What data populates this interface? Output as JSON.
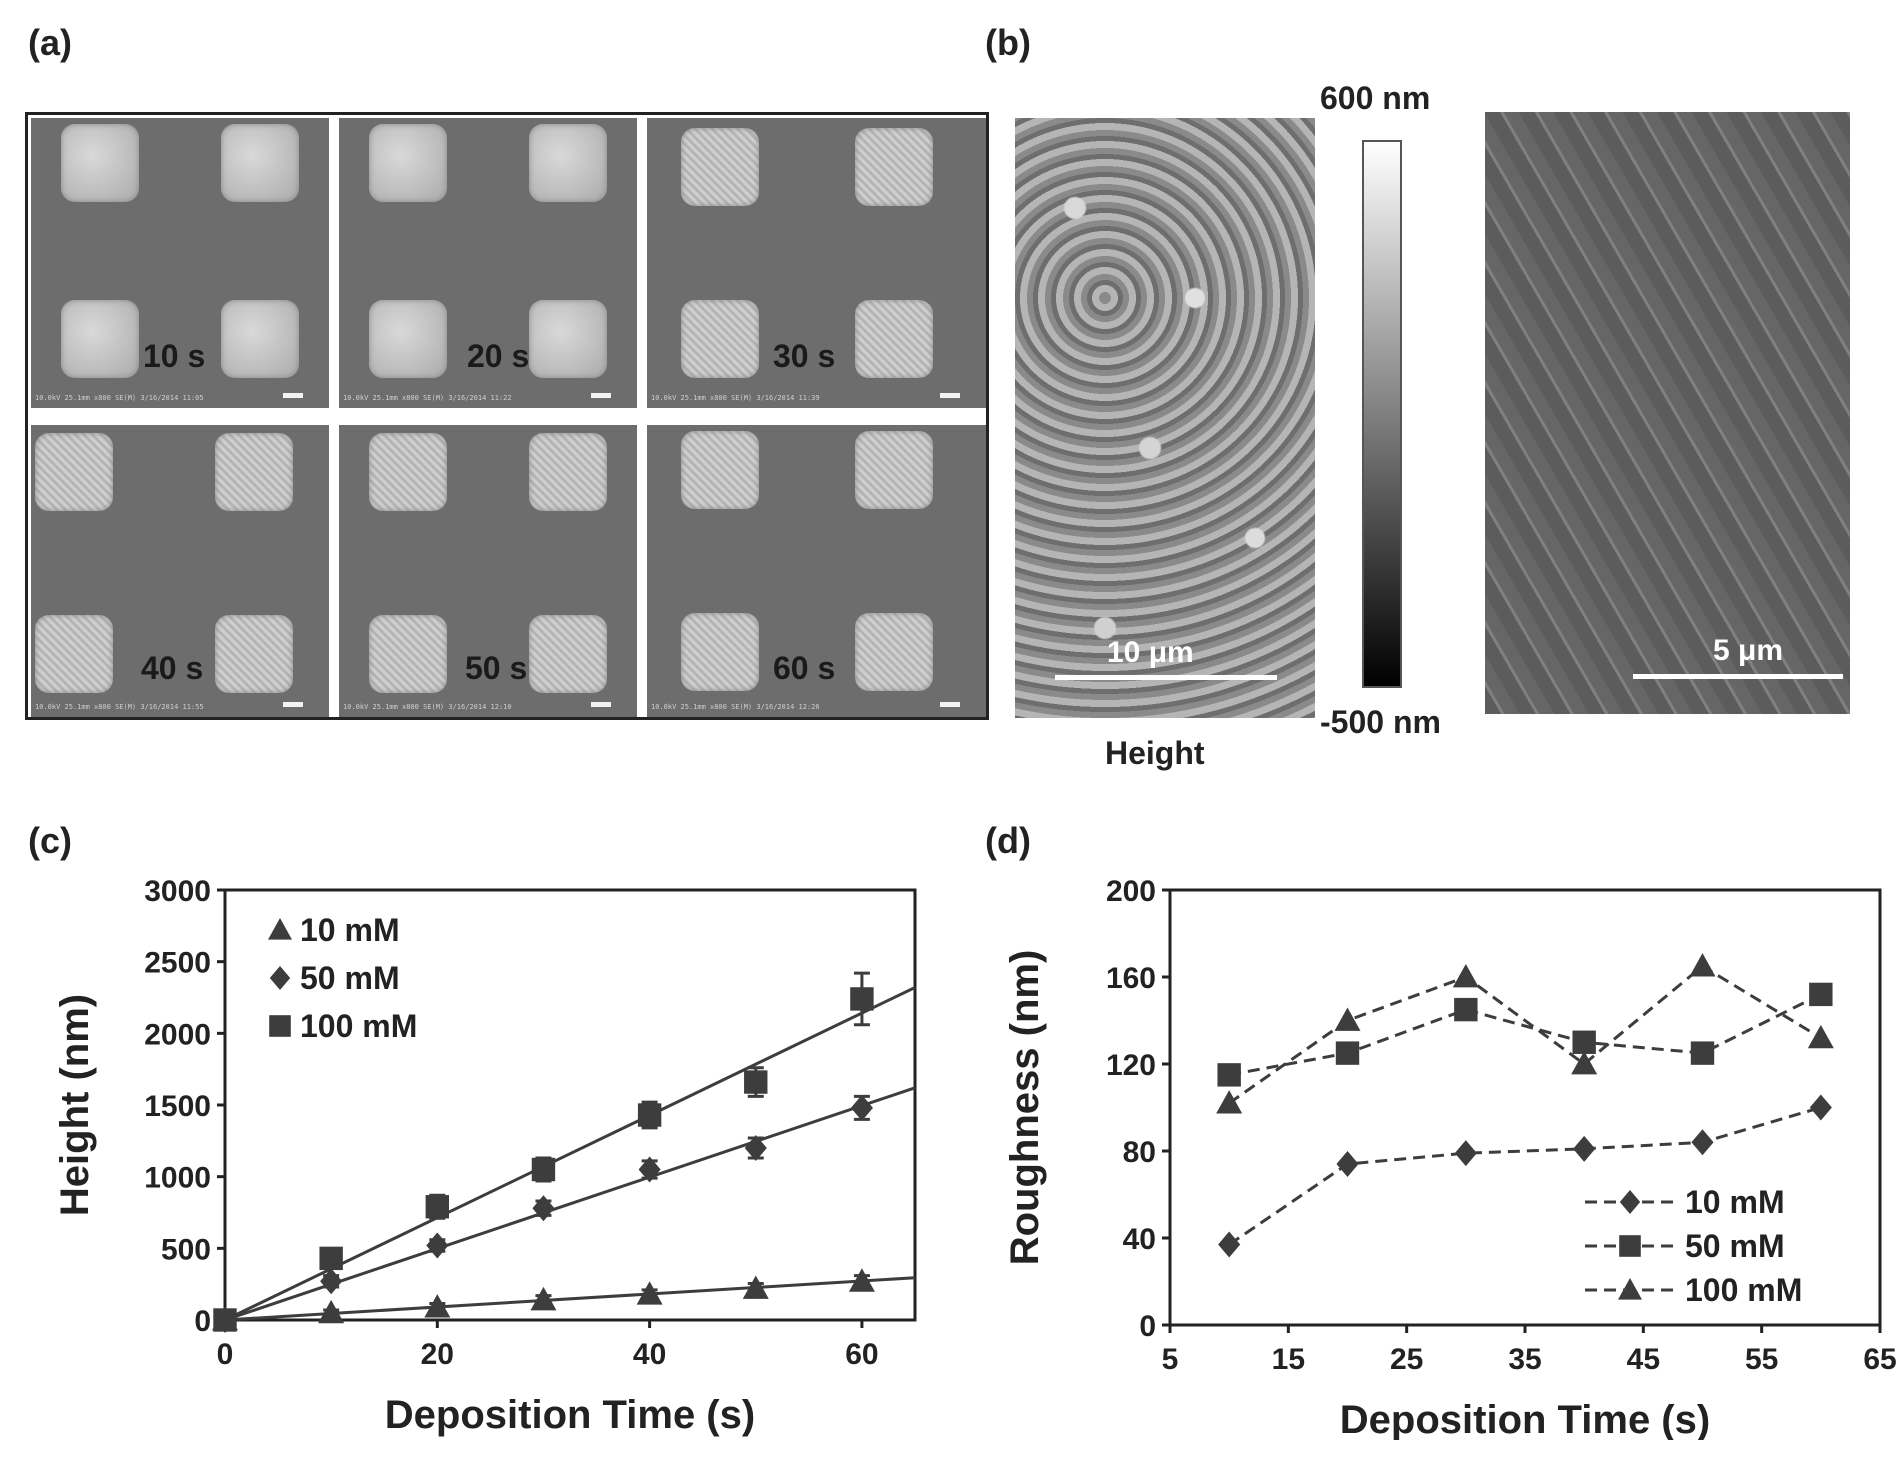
{
  "panels": {
    "a": {
      "label": "(a)",
      "tiles": [
        "10 s",
        "20 s",
        "30 s",
        "40 s",
        "50 s",
        "60 s"
      ],
      "info_text": [
        "10.0kV 25.1mm x800 SE(M) 3/16/2014 11:05",
        "10.0kV 25.1mm x800 SE(M) 3/16/2014 11:22",
        "10.0kV 25.1mm x800 SE(M) 3/16/2014 11:39",
        "10.0kV 25.1mm x800 SE(M) 3/16/2014 11:55",
        "10.0kV 25.1mm x800 SE(M) 3/16/2014 12:10",
        "10.0kV 25.1mm x800 SE(M) 3/16/2014 12:26"
      ]
    },
    "b": {
      "label": "(b)",
      "afm_scale": "10 μm",
      "sem_scale": "5 μm",
      "colorbar_max": "600 nm",
      "colorbar_min": "-500 nm",
      "colorbar_title": "Height"
    },
    "c": {
      "label": "(c)"
    },
    "d": {
      "label": "(d)"
    }
  },
  "colors": {
    "series": "#3d3d3d",
    "axis": "#222222"
  },
  "chart_data": [
    {
      "id": "c",
      "type": "scatter",
      "xlabel": "Deposition Time (s)",
      "ylabel": "Height (nm)",
      "xlim": [
        0,
        65
      ],
      "ylim": [
        0,
        3000
      ],
      "xticks": [
        0,
        20,
        40,
        60
      ],
      "yticks": [
        0,
        500,
        1000,
        1500,
        2000,
        2500,
        3000
      ],
      "legend_position": "top-left",
      "grid": false,
      "series": [
        {
          "name": "10 mM",
          "marker": "triangle",
          "x": [
            0,
            10,
            20,
            30,
            40,
            50,
            60
          ],
          "values": [
            0,
            50,
            90,
            140,
            180,
            220,
            270
          ],
          "errors": [
            0,
            20,
            25,
            30,
            30,
            35,
            40
          ],
          "fit": [
            [
              0,
              0
            ],
            [
              65,
              295
            ]
          ]
        },
        {
          "name": "50 mM",
          "marker": "diamond",
          "x": [
            0,
            10,
            20,
            30,
            40,
            50,
            60
          ],
          "values": [
            0,
            270,
            520,
            780,
            1050,
            1200,
            1480
          ],
          "errors": [
            0,
            40,
            40,
            50,
            60,
            70,
            80
          ],
          "fit": [
            [
              0,
              0
            ],
            [
              65,
              1620
            ]
          ]
        },
        {
          "name": "100 mM",
          "marker": "square",
          "x": [
            0,
            10,
            20,
            30,
            40,
            50,
            60
          ],
          "values": [
            0,
            430,
            790,
            1050,
            1430,
            1660,
            2240
          ],
          "errors": [
            0,
            40,
            80,
            80,
            90,
            100,
            180
          ],
          "fit": [
            [
              0,
              0
            ],
            [
              65,
              2320
            ]
          ]
        }
      ]
    },
    {
      "id": "d",
      "type": "line",
      "xlabel": "Deposition Time (s)",
      "ylabel": "Roughness (nm)",
      "xlim": [
        5,
        65
      ],
      "ylim": [
        0,
        200
      ],
      "xticks": [
        5,
        15,
        25,
        35,
        45,
        55,
        65
      ],
      "yticks": [
        0,
        40,
        80,
        120,
        160,
        200
      ],
      "legend_position": "bottom-right",
      "grid": false,
      "series": [
        {
          "name": "10 mM",
          "marker": "diamond",
          "x": [
            10,
            20,
            30,
            40,
            50,
            60
          ],
          "values": [
            37,
            74,
            79,
            81,
            84,
            100
          ]
        },
        {
          "name": "50 mM",
          "marker": "square",
          "x": [
            10,
            20,
            30,
            40,
            50,
            60
          ],
          "values": [
            115,
            125,
            145,
            130,
            125,
            152
          ]
        },
        {
          "name": "100 mM",
          "marker": "triangle",
          "x": [
            10,
            20,
            30,
            40,
            50,
            60
          ],
          "values": [
            102,
            140,
            160,
            120,
            165,
            132
          ]
        }
      ]
    }
  ]
}
